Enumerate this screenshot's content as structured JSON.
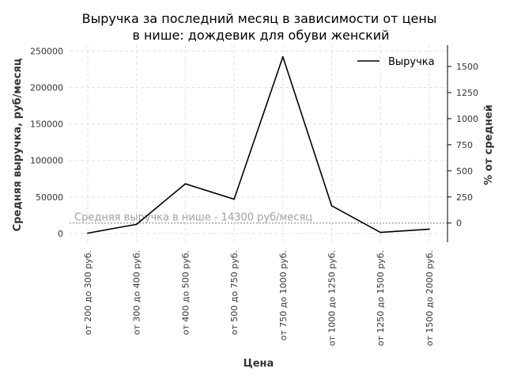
{
  "chart_data": {
    "type": "line",
    "title_line1": "Выручка за последний месяц в зависимости от цены",
    "title_line2": "в нише: дождевик для обуви женский",
    "xlabel": "Цена",
    "ylabel": "Средняя выручка, руб/месяц",
    "ylabel_right": "% от средней",
    "categories": [
      "от 200 до 300 руб.",
      "от 300 до 400 руб.",
      "от 400 до 500 руб.",
      "от 500 до 750 руб.",
      "от 750 до 1000 руб.",
      "от 1000 до 1250 руб.",
      "от 1250 до 1500 руб.",
      "от 1500 до 2000 руб."
    ],
    "series": [
      {
        "name": "Выручка",
        "values": [
          500,
          12500,
          68000,
          47000,
          242000,
          38000,
          1500,
          6000
        ]
      }
    ],
    "ylim": [
      -12000,
      258000
    ],
    "yticks": [
      0,
      50000,
      100000,
      150000,
      200000,
      250000
    ],
    "ylim_right": [
      -183.9,
      1704.2
    ],
    "yticks_right": [
      0,
      250,
      500,
      750,
      1000,
      1250,
      1500
    ],
    "average": {
      "value": 14300,
      "label": "Средняя выручка в нише - 14300 руб/месяц"
    },
    "grid": true,
    "legend": "top-right",
    "colors": {
      "line": "#000000",
      "grid": "#e3e3e3",
      "average": "#a8a8a8"
    }
  }
}
